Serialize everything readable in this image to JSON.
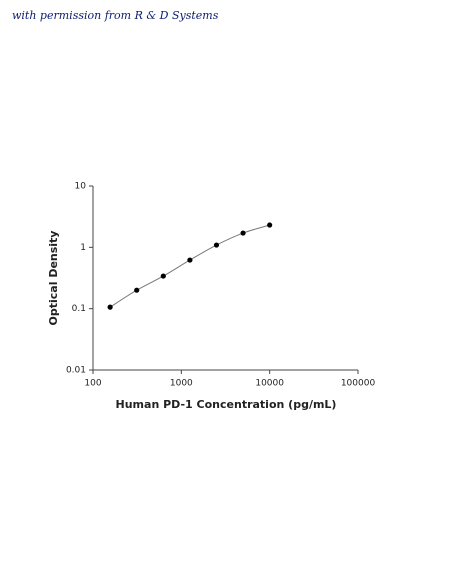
{
  "annotation": "with permission from R & D Systems",
  "chart_data": {
    "type": "scatter",
    "x_label": "Human PD-1 Concentration (pg/mL)",
    "y_label": "Optical Density",
    "x": [
      156.25,
      312.5,
      625,
      1250,
      2500,
      5000,
      10000
    ],
    "values": [
      0.106,
      0.2,
      0.34,
      0.62,
      1.09,
      1.71,
      2.31
    ],
    "color": "#000000",
    "line_color": "#777777",
    "connect": true,
    "xscale": "log",
    "yscale": "log",
    "xlim": [
      100,
      100000
    ],
    "ylim": [
      0.01,
      10
    ],
    "xticks": [
      100,
      1000,
      10000,
      100000
    ],
    "yticks": [
      10,
      1,
      0.1,
      0.01
    ]
  }
}
